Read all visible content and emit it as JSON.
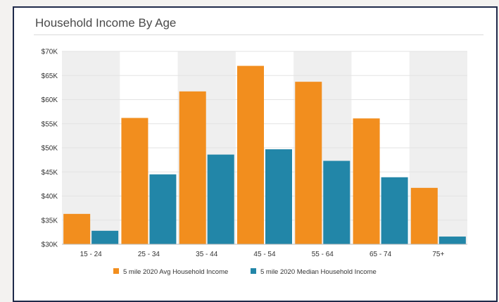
{
  "card": {
    "title": "Household Income By Age"
  },
  "colors": {
    "avg": "#f28e1e",
    "median": "#2286a8",
    "band": "#efefef"
  },
  "chart_data": {
    "type": "bar",
    "title": "Household Income By Age",
    "xlabel": "",
    "ylabel": "",
    "categories": [
      "15 - 24",
      "25 - 34",
      "35 - 44",
      "45 - 54",
      "55 - 64",
      "65 - 74",
      "75+"
    ],
    "series": [
      {
        "name": "5 mile 2020 Avg Household Income",
        "values": [
          36300,
          56200,
          61700,
          67000,
          63700,
          56100,
          41700
        ]
      },
      {
        "name": "5 mile 2020 Median Household Income",
        "values": [
          32800,
          44500,
          48600,
          49700,
          47300,
          43900,
          31600
        ]
      }
    ],
    "ylim": [
      30000,
      70000
    ],
    "yticks": [
      30000,
      35000,
      40000,
      45000,
      50000,
      55000,
      60000,
      65000,
      70000
    ],
    "ytick_labels": [
      "$30K",
      "$35K",
      "$40K",
      "$45K",
      "$50K",
      "$55K",
      "$60K",
      "$65K",
      "$70K"
    ],
    "grid": true,
    "alternating_bands": true,
    "legend_position": "bottom"
  }
}
